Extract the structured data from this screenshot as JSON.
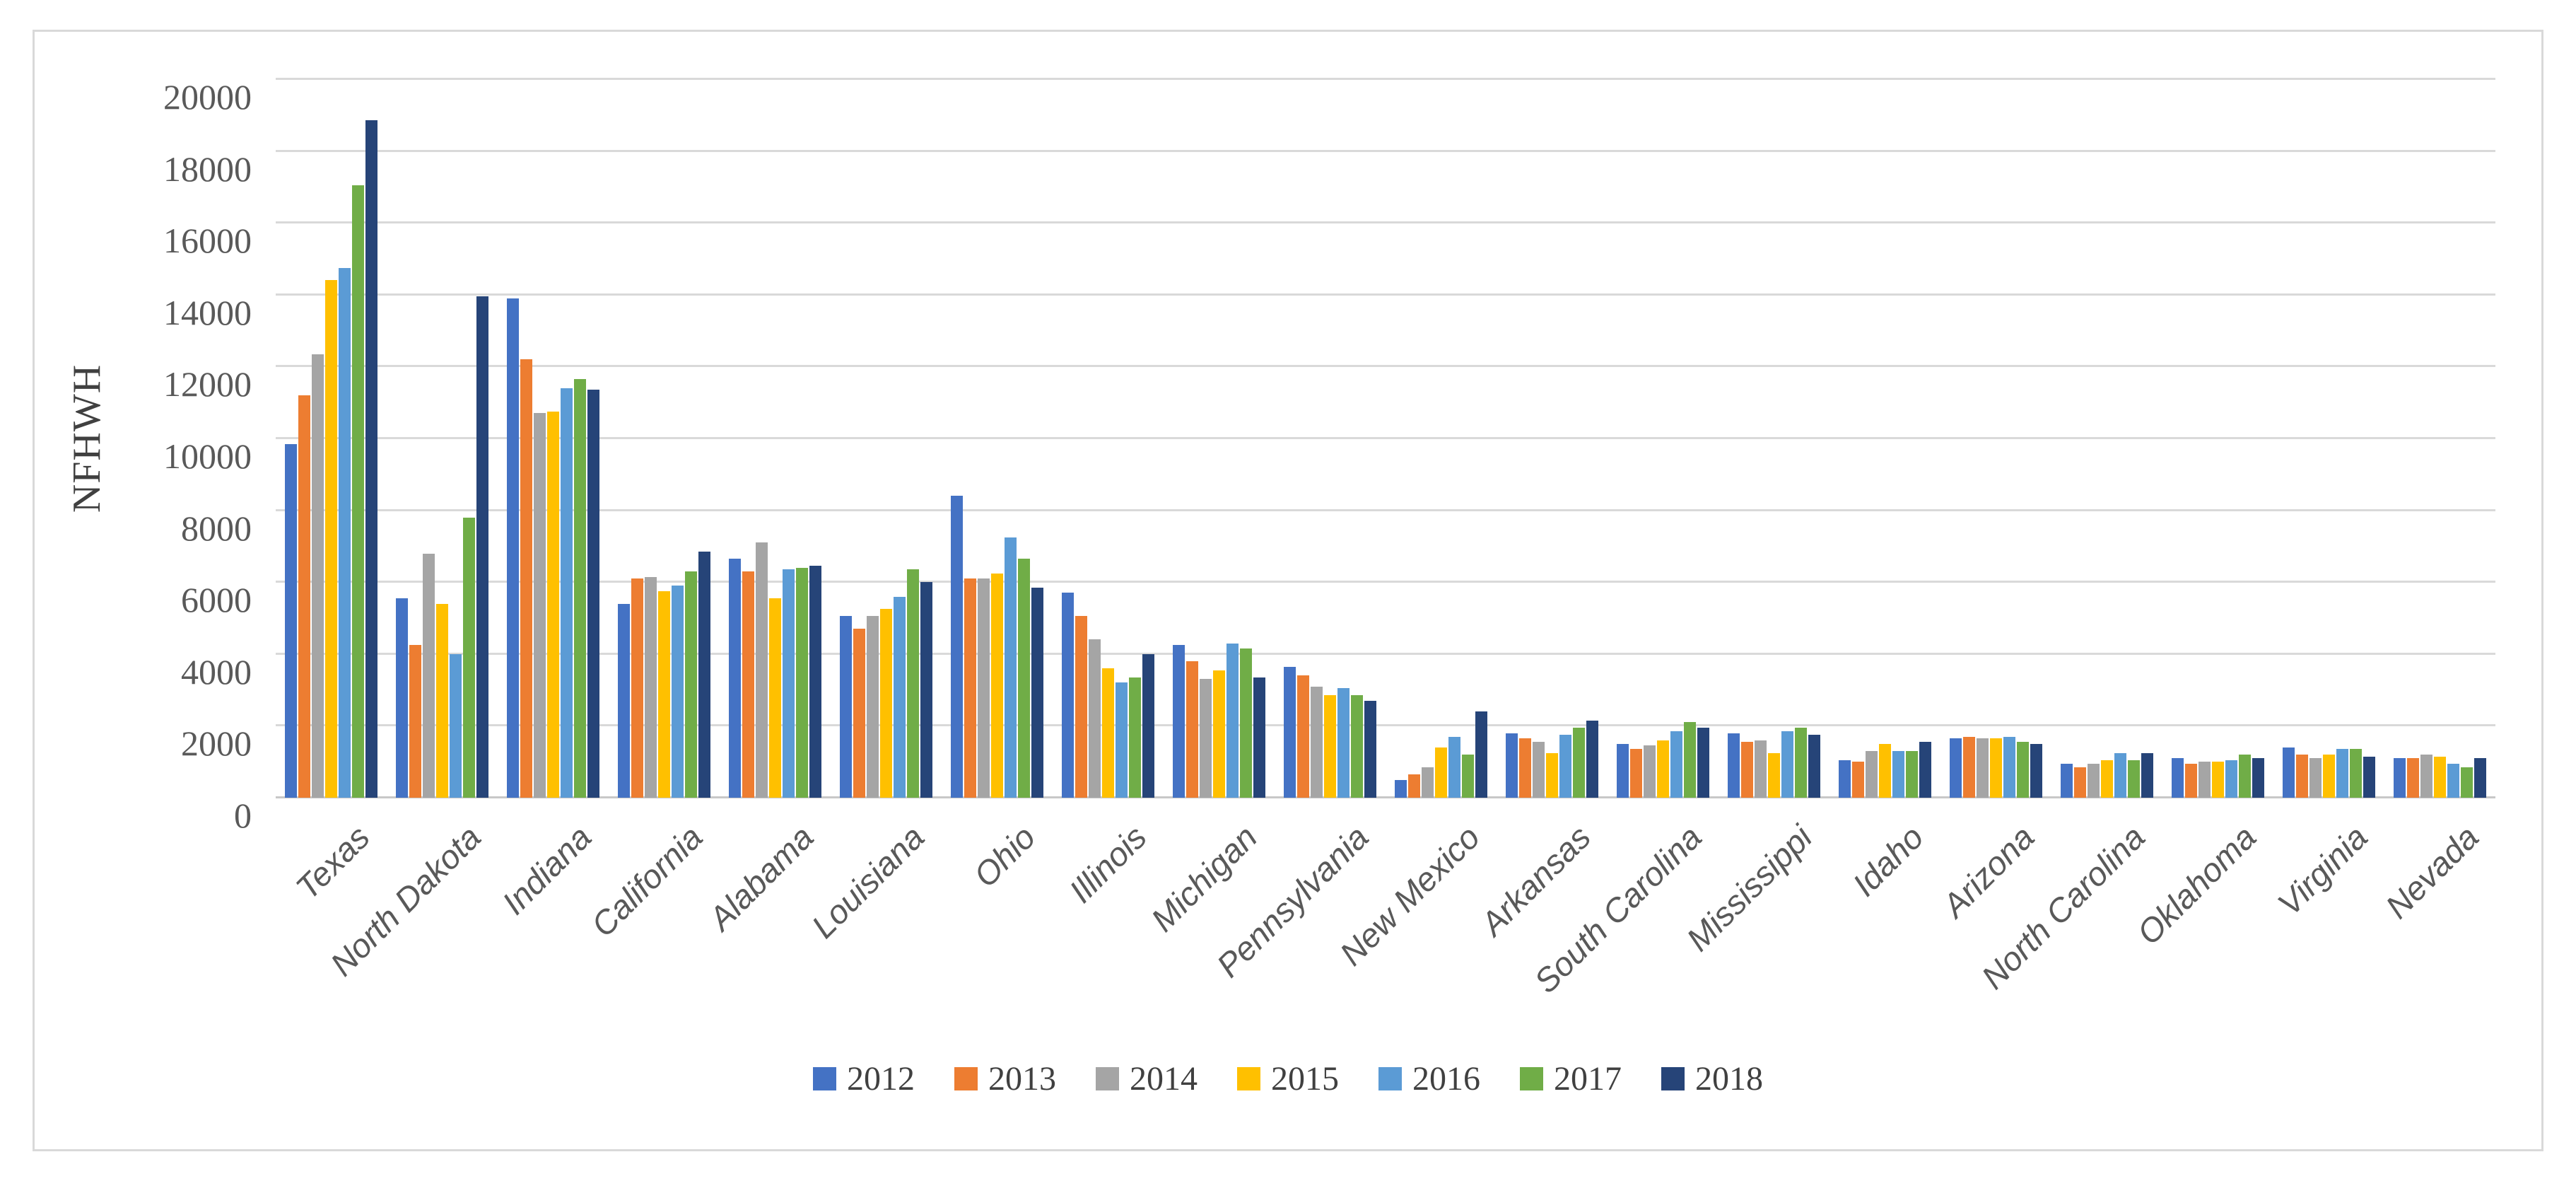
{
  "window": {
    "background": "#ffffff",
    "frame_border_color": "#d9d9d9",
    "text_color": "#595959"
  },
  "chart_data": {
    "type": "bar",
    "title": "",
    "xlabel": "",
    "ylabel": "NFHWH",
    "ylim": [
      0,
      20000
    ],
    "ytick_step": 2000,
    "yticks": [
      0,
      2000,
      4000,
      6000,
      8000,
      10000,
      12000,
      14000,
      16000,
      18000,
      20000
    ],
    "grid": "horizontal",
    "grid_color": "#d9d9d9",
    "legend_position": "bottom",
    "categories": [
      "Texas",
      "North Dakota",
      "Indiana",
      "California",
      "Alabama",
      "Louisiana",
      "Ohio",
      "Illinois",
      "Michigan",
      "Pennsylvania",
      "New Mexico",
      "Arkansas",
      "South Carolina",
      "Mississippi",
      "Idaho",
      "Arizona",
      "North Carolina",
      "Oklahoma",
      "Virginia",
      "Nevada"
    ],
    "series": [
      {
        "name": "2012",
        "color": "#4472C4",
        "values": [
          9850,
          5550,
          13900,
          5400,
          6650,
          5050,
          8400,
          5700,
          4250,
          3650,
          500,
          1800,
          1500,
          1800,
          1050,
          1650,
          950,
          1100,
          1400,
          1100
        ]
      },
      {
        "name": "2013",
        "color": "#ED7D31",
        "values": [
          11200,
          4250,
          12200,
          6100,
          6300,
          4700,
          6100,
          5050,
          3800,
          3400,
          650,
          1650,
          1350,
          1550,
          1000,
          1700,
          850,
          950,
          1200,
          1100
        ]
      },
      {
        "name": "2014",
        "color": "#A5A5A5",
        "values": [
          12350,
          6800,
          10700,
          6150,
          7100,
          5050,
          6100,
          4400,
          3300,
          3100,
          850,
          1550,
          1450,
          1600,
          1300,
          1650,
          950,
          1000,
          1100,
          1200
        ]
      },
      {
        "name": "2015",
        "color": "#FFC000",
        "values": [
          14400,
          5400,
          10750,
          5750,
          5550,
          5250,
          6250,
          3600,
          3550,
          2850,
          1400,
          1250,
          1600,
          1250,
          1500,
          1650,
          1050,
          1000,
          1200,
          1150
        ]
      },
      {
        "name": "2016",
        "color": "#5B9BD5",
        "values": [
          14750,
          4000,
          11400,
          5900,
          6350,
          5600,
          7250,
          3200,
          4300,
          3050,
          1700,
          1750,
          1850,
          1850,
          1300,
          1700,
          1250,
          1050,
          1350,
          950
        ]
      },
      {
        "name": "2017",
        "color": "#70AD47",
        "values": [
          17050,
          7800,
          11650,
          6300,
          6400,
          6350,
          6650,
          3350,
          4150,
          2850,
          1200,
          1950,
          2100,
          1950,
          1300,
          1550,
          1050,
          1200,
          1350,
          850
        ]
      },
      {
        "name": "2018",
        "color": "#264478",
        "values": [
          18850,
          13950,
          11350,
          6850,
          6450,
          6000,
          5850,
          4000,
          3350,
          2700,
          2400,
          2150,
          1950,
          1750,
          1550,
          1500,
          1250,
          1100,
          1150,
          1100
        ]
      }
    ]
  }
}
